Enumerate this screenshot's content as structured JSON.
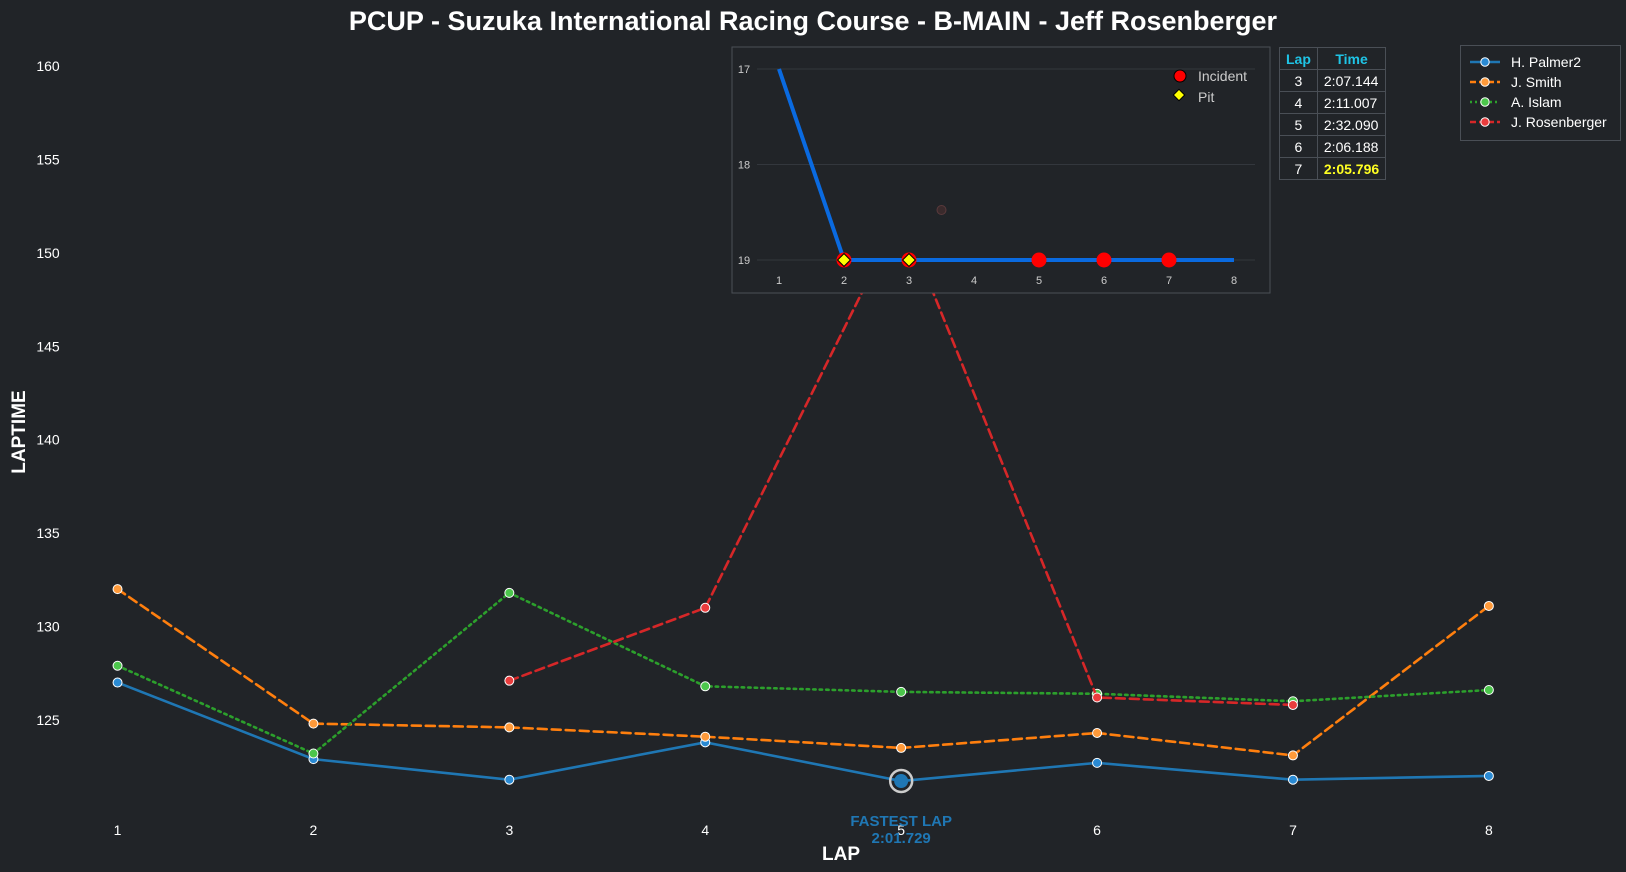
{
  "chart_data": [
    {
      "type": "line",
      "title": "PCUP - Suzuka International Racing Course - B-MAIN - Jeff Rosenberger",
      "xlabel": "LAP",
      "ylabel": "LAPTIME",
      "x": [
        1,
        2,
        3,
        4,
        5,
        6,
        7,
        8
      ],
      "xlim": [
        0.4,
        8.7
      ],
      "ylim": [
        119.0,
        161.5
      ],
      "yticks": [
        125,
        130,
        135,
        140,
        145,
        150,
        155,
        160
      ],
      "grid": false,
      "legend_position": "top-right",
      "series": [
        {
          "name": "H. Palmer2",
          "color": "#1f77b4",
          "style": "solid",
          "values": [
            127.0,
            122.9,
            121.8,
            123.8,
            121.729,
            122.7,
            121.8,
            122.0
          ]
        },
        {
          "name": "J. Smith",
          "color": "#ff7f0e",
          "style": "dashed",
          "values": [
            132.0,
            124.8,
            124.6,
            124.1,
            123.5,
            124.3,
            123.1,
            131.1
          ]
        },
        {
          "name": "A. Islam",
          "color": "#2ca02c",
          "style": "dotted",
          "values": [
            127.9,
            123.2,
            131.8,
            126.8,
            126.5,
            126.4,
            126.0,
            126.6
          ]
        },
        {
          "name": "J. Rosenberger",
          "color": "#d62728",
          "style": "dashed",
          "values": [
            null,
            null,
            127.1,
            131.0,
            152.1,
            126.2,
            125.8,
            null
          ]
        }
      ],
      "annotation": {
        "label": "FASTEST LAP",
        "value": "2:01.729",
        "series": "H. Palmer2",
        "x": 5,
        "y": 121.729
      }
    },
    {
      "type": "line",
      "title": "",
      "x": [
        1,
        2,
        3,
        4,
        5,
        6,
        7,
        8
      ],
      "values": [
        17,
        19,
        19,
        19,
        19,
        19,
        19,
        19
      ],
      "ylim": [
        16.8,
        19.0
      ],
      "yticks": [
        17,
        18,
        19
      ],
      "inverted_y": true,
      "line_color": "#0a6ae0",
      "legend": [
        "Incident",
        "Pit"
      ],
      "incidents_at_lap": [
        2,
        3,
        5,
        6,
        7
      ],
      "pits_at_lap": [
        2,
        3
      ],
      "faint_laps_at_lap": [
        3.5
      ]
    },
    {
      "type": "table",
      "columns": [
        "Lap",
        "Time"
      ],
      "rows": [
        {
          "lap": "3",
          "time": "2:07.144",
          "fastest": false
        },
        {
          "lap": "4",
          "time": "2:11.007",
          "fastest": false
        },
        {
          "lap": "5",
          "time": "2:32.090",
          "fastest": false
        },
        {
          "lap": "6",
          "time": "2:06.188",
          "fastest": false
        },
        {
          "lap": "7",
          "time": "2:05.796",
          "fastest": true
        }
      ],
      "header_color": "#1fc4e6",
      "fastest_color": "#ffff22"
    }
  ],
  "colors": {
    "background": "#212428",
    "text": "#ffffff",
    "annotation": "#1f77b4",
    "incident": "#ff0000",
    "pit": "#ffff00"
  }
}
